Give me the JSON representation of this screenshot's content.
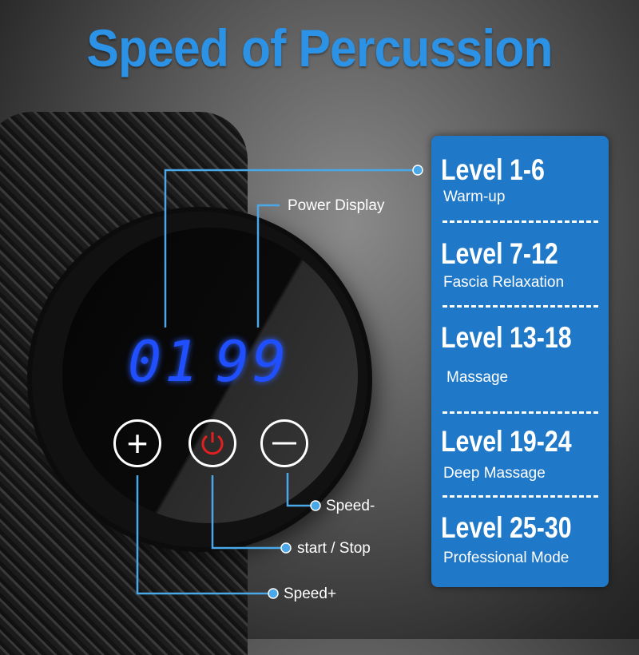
{
  "title": "Speed of Percussion",
  "display": {
    "left_digits": "01",
    "right_digits": "99",
    "digit_color": "#1f4fff"
  },
  "buttons": {
    "plus_icon": "plus-icon",
    "power_icon": "power-icon",
    "minus_icon": "minus-icon",
    "power_color": "#e02020"
  },
  "callouts": {
    "power_display": "Power Display",
    "speed_minus": "Speed-",
    "start_stop": "start / Stop",
    "speed_plus": "Speed+"
  },
  "levels": [
    {
      "range": "Level 1-6",
      "mode": "Warm-up"
    },
    {
      "range": "Level 7-12",
      "mode": "Fascia Relaxation"
    },
    {
      "range": "Level 13-18",
      "mode": "Massage"
    },
    {
      "range": "Level 19-24",
      "mode": "Deep Massage"
    },
    {
      "range": "Level 25-30",
      "mode": "Professional Mode"
    }
  ],
  "colors": {
    "title": "#2b92e6",
    "panel": "#1f78c8",
    "leader_line": "#4aa8e8"
  }
}
